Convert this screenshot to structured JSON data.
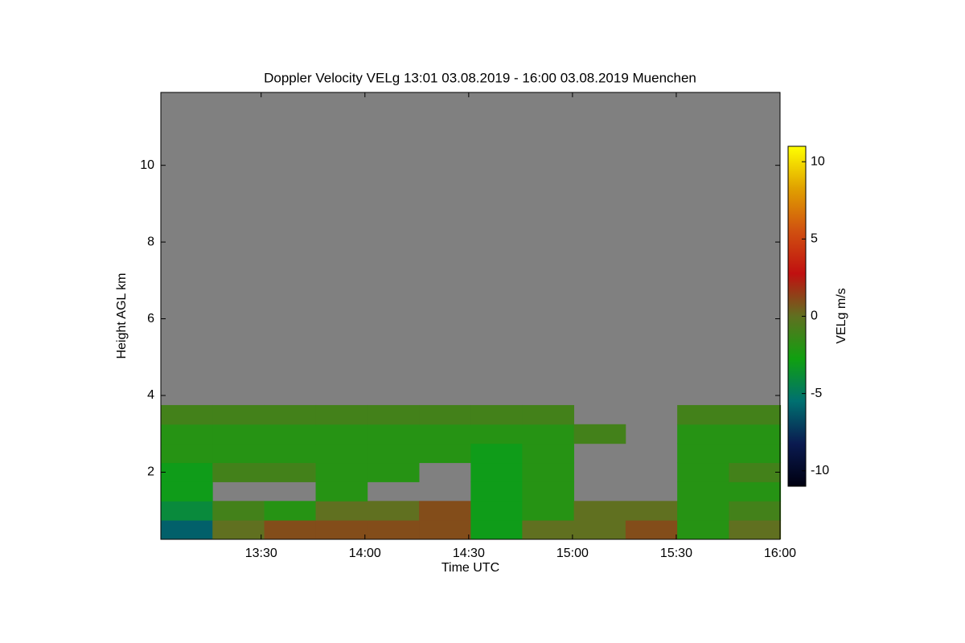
{
  "chart_data": {
    "type": "heatmap",
    "title": "Doppler Velocity VELg   13:01 03.08.2019 - 16:00 03.08.2019 Muenchen",
    "x_label": "Time UTC",
    "y_label": "Height AGL km",
    "colorbar_label": "VELg m/s",
    "background": "#808080",
    "xlim": [
      13.0167,
      16.0
    ],
    "xticks": [
      {
        "value": 13.5,
        "label": "13:30"
      },
      {
        "value": 14.0,
        "label": "14:00"
      },
      {
        "value": 14.5,
        "label": "14:30"
      },
      {
        "value": 15.0,
        "label": "15:00"
      },
      {
        "value": 15.5,
        "label": "15:30"
      },
      {
        "value": 16.0,
        "label": "16:00"
      }
    ],
    "ylim": [
      0.25,
      11.9
    ],
    "yticks": [
      2,
      4,
      6,
      8,
      10
    ],
    "zlim": [
      -11,
      11
    ],
    "zticks": [
      -10,
      -5,
      0,
      5,
      10
    ],
    "colormap": [
      "#000010",
      "#0a1a50",
      "#007070",
      "#10a010",
      "#607020",
      "#c01010",
      "#d05010",
      "#e0a000",
      "#ffff00"
    ],
    "x": [
      13.141,
      13.39,
      13.639,
      13.887,
      14.136,
      14.385,
      14.634,
      14.882,
      15.131,
      15.38,
      15.629,
      15.878
    ],
    "y": [
      0.5,
      1.0,
      1.5,
      2.0,
      2.5,
      3.0,
      3.5
    ],
    "z": [
      [
        -6,
        0,
        1,
        1,
        1,
        1,
        -3,
        0,
        0,
        1,
        -2,
        0
      ],
      [
        -4,
        -1,
        -2,
        0,
        0,
        1,
        -3,
        -2,
        0,
        0,
        -2,
        -1
      ],
      [
        -3,
        null,
        null,
        -2,
        null,
        null,
        -3,
        -2,
        null,
        null,
        -2,
        -2
      ],
      [
        -3,
        -1,
        -1,
        -2,
        -2,
        null,
        -3,
        -2,
        null,
        null,
        -2,
        -1
      ],
      [
        -2,
        -2,
        -2,
        -2,
        -2,
        -2,
        -3,
        -2,
        null,
        null,
        -2,
        -2
      ],
      [
        -2,
        -2,
        -2,
        -2,
        -2,
        -2,
        -2,
        -2,
        -1,
        null,
        -2,
        -2
      ],
      [
        -1,
        -1,
        -1,
        -1,
        -1,
        -1,
        -1,
        -1,
        null,
        null,
        -1,
        -1
      ]
    ]
  }
}
